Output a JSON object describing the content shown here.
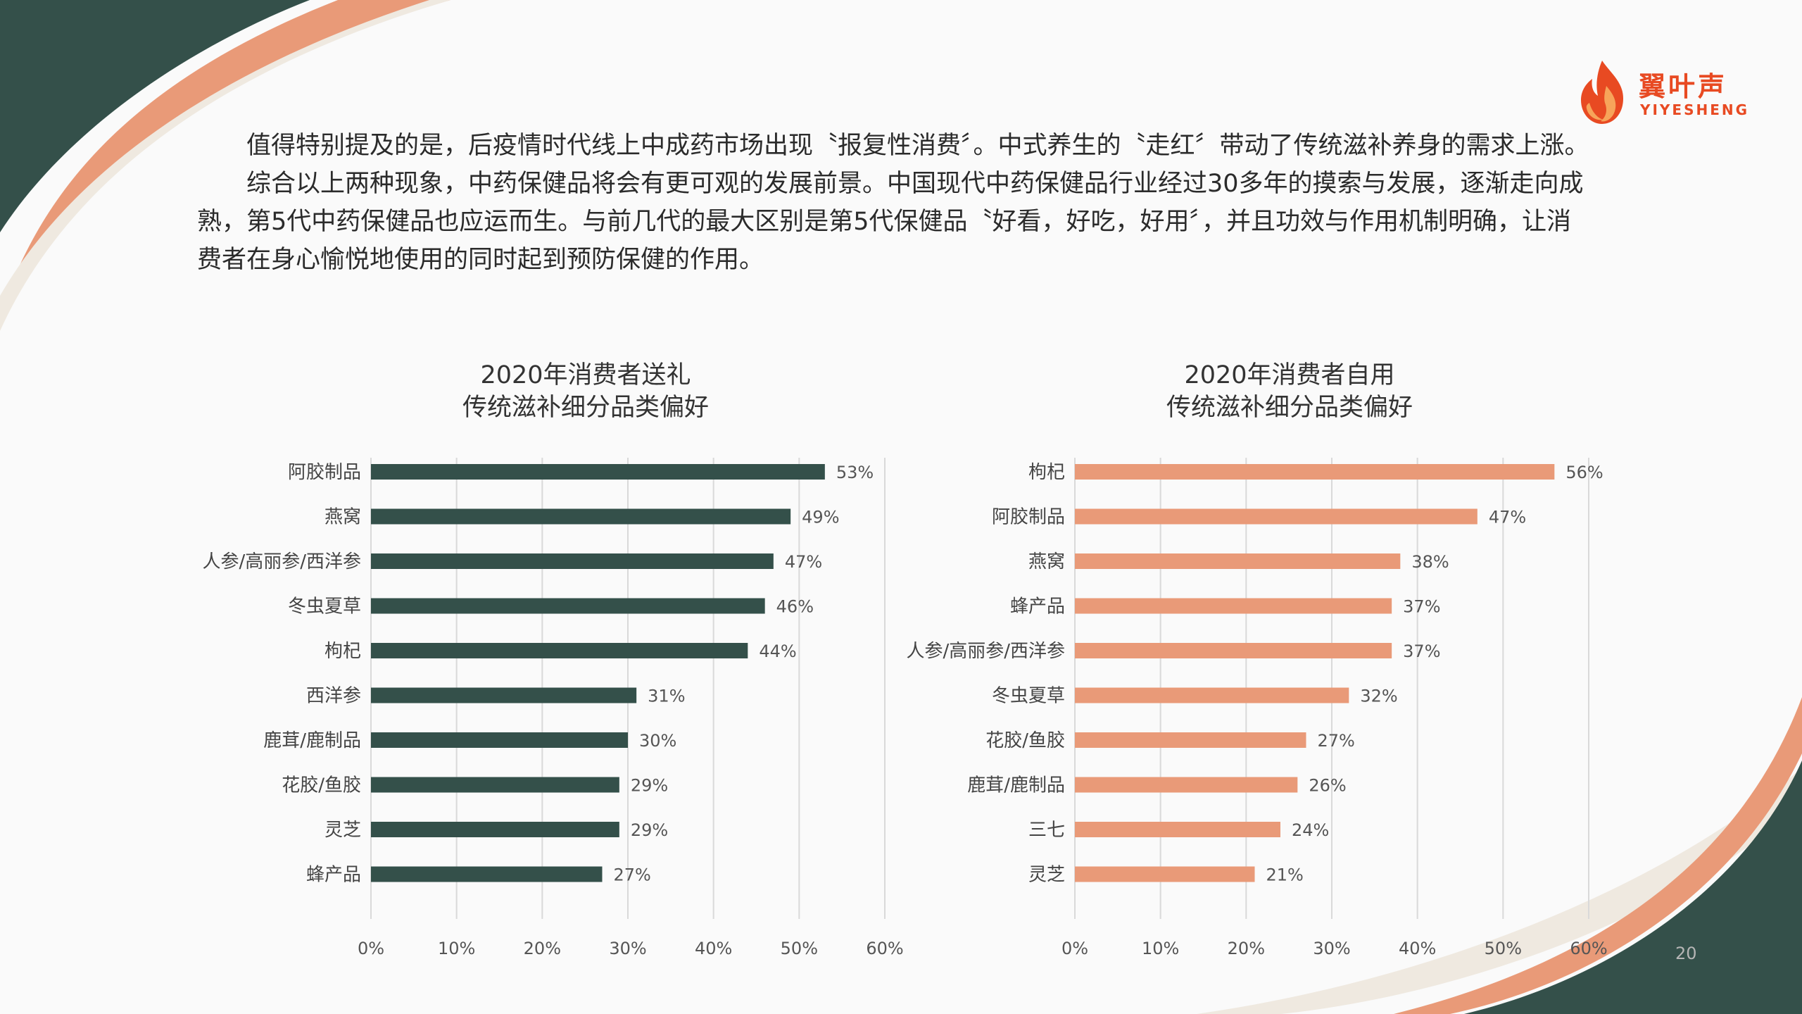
{
  "logo": {
    "name_cn": "翼叶声",
    "name_en": "YIYESHENG",
    "icon": "flame-icon"
  },
  "paragraphs": [
    "值得特别提及的是，后疫情时代线上中成药市场出现〝报复性消费〞。中式养生的〝走红〞带动了传统滋补养身的需求上涨。",
    "综合以上两种现象，中药保健品将会有更可观的发展前景。中国现代中药保健品行业经过30多年的摸索与发展，逐渐走向成熟，第5代中药保健品也应运而生。与前几代的最大区别是第5代保健品〝好看，好吃，好用〞，并且功效与作用机制明确，让消费者在身心愉悦地使用的同时起到预防保健的作用。"
  ],
  "page_number": "20",
  "colors": {
    "dark_green": "#34504a",
    "salmon": "#e99a78",
    "cream": "#efe9e0",
    "brand_orange": "#e84a22"
  },
  "chart_data": [
    {
      "type": "bar",
      "orientation": "horizontal",
      "title": [
        "2020年消费者送礼",
        "传统滋补细分品类偏好"
      ],
      "categories": [
        "阿胶制品",
        "燕窝",
        "人参/高丽参/西洋参",
        "冬虫夏草",
        "枸杞",
        "西洋参",
        "鹿茸/鹿制品",
        "花胶/鱼胶",
        "灵芝",
        "蜂产品"
      ],
      "values": [
        53,
        49,
        47,
        46,
        44,
        31,
        30,
        29,
        29,
        27
      ],
      "value_labels": [
        "53%",
        "49%",
        "47%",
        "46%",
        "44%",
        "31%",
        "30%",
        "29%",
        "29%",
        "27%"
      ],
      "xlim": [
        0,
        60
      ],
      "xticks": [
        0,
        10,
        20,
        30,
        40,
        50,
        60
      ],
      "xtick_labels": [
        "0%",
        "10%",
        "20%",
        "30%",
        "40%",
        "50%",
        "60%"
      ],
      "color": "#34504a",
      "grid": true
    },
    {
      "type": "bar",
      "orientation": "horizontal",
      "title": [
        "2020年消费者自用",
        "传统滋补细分品类偏好"
      ],
      "categories": [
        "枸杞",
        "阿胶制品",
        "燕窝",
        "蜂产品",
        "人参/高丽参/西洋参",
        "冬虫夏草",
        "花胶/鱼胶",
        "鹿茸/鹿制品",
        "三七",
        "灵芝"
      ],
      "values": [
        56,
        47,
        38,
        37,
        37,
        32,
        27,
        26,
        24,
        21
      ],
      "value_labels": [
        "56%",
        "47%",
        "38%",
        "37%",
        "37%",
        "32%",
        "27%",
        "26%",
        "24%",
        "21%"
      ],
      "xlim": [
        0,
        60
      ],
      "xticks": [
        0,
        10,
        20,
        30,
        40,
        50,
        60
      ],
      "xtick_labels": [
        "0%",
        "10%",
        "20%",
        "30%",
        "40%",
        "50%",
        "60%"
      ],
      "color": "#e99a78",
      "grid": true
    }
  ]
}
